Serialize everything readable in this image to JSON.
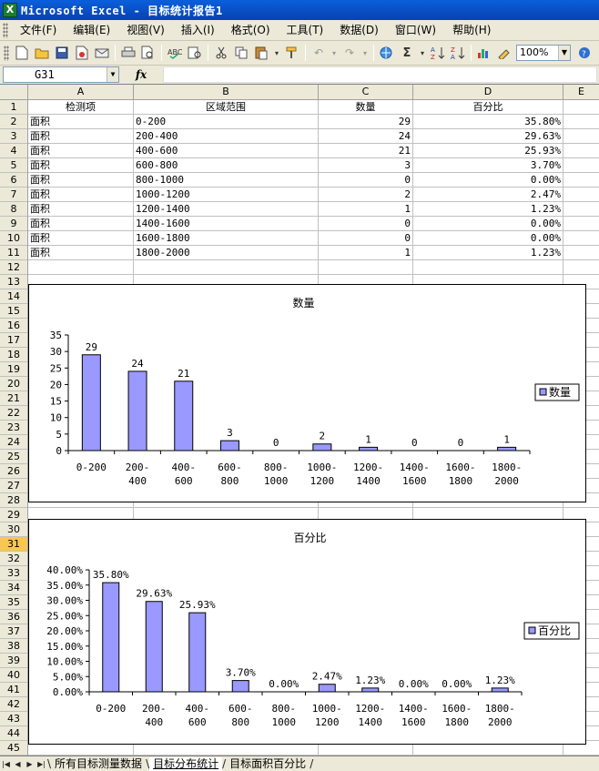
{
  "window": {
    "title": "Microsoft Excel - 目标统计报告1",
    "app_icon": "X"
  },
  "menu": [
    "文件(F)",
    "编辑(E)",
    "视图(V)",
    "插入(I)",
    "格式(O)",
    "工具(T)",
    "数据(D)",
    "窗口(W)",
    "帮助(H)"
  ],
  "toolbar": {
    "zoom": "100%"
  },
  "formula_bar": {
    "name_box": "G31",
    "fx": "fx",
    "formula": ""
  },
  "columns": [
    "A",
    "B",
    "C",
    "D",
    "E"
  ],
  "rows": [
    "1",
    "2",
    "3",
    "4",
    "5",
    "6",
    "7",
    "8",
    "9",
    "10",
    "11",
    "12",
    "13",
    "14",
    "15",
    "16",
    "17",
    "18",
    "19",
    "20",
    "21",
    "22",
    "23",
    "24",
    "25",
    "26",
    "27",
    "28",
    "29",
    "30",
    "31",
    "32",
    "33",
    "34",
    "35",
    "36",
    "37",
    "38",
    "39",
    "40",
    "41",
    "42",
    "43",
    "44",
    "45"
  ],
  "selected_row": "31",
  "table": {
    "headers": [
      "检测项",
      "区域范围",
      "数量",
      "百分比"
    ],
    "rows": [
      [
        "面积",
        "0-200",
        "29",
        "35.80%"
      ],
      [
        "面积",
        "200-400",
        "24",
        "29.63%"
      ],
      [
        "面积",
        "400-600",
        "21",
        "25.93%"
      ],
      [
        "面积",
        "600-800",
        "3",
        "3.70%"
      ],
      [
        "面积",
        "800-1000",
        "0",
        "0.00%"
      ],
      [
        "面积",
        "1000-1200",
        "2",
        "2.47%"
      ],
      [
        "面积",
        "1200-1400",
        "1",
        "1.23%"
      ],
      [
        "面积",
        "1400-1600",
        "0",
        "0.00%"
      ],
      [
        "面积",
        "1600-1800",
        "0",
        "0.00%"
      ],
      [
        "面积",
        "1800-2000",
        "1",
        "1.23%"
      ]
    ]
  },
  "chart_data": [
    {
      "type": "bar",
      "title": "数量",
      "categories": [
        "0-200",
        "200-400",
        "400-600",
        "600-800",
        "800-1000",
        "1000-1200",
        "1200-1400",
        "1400-1600",
        "1600-1800",
        "1800-2000"
      ],
      "category_lines": [
        [
          "0-200"
        ],
        [
          "200-",
          "400"
        ],
        [
          "400-",
          "600"
        ],
        [
          "600-",
          "800"
        ],
        [
          "800-",
          "1000"
        ],
        [
          "1000-",
          "1200"
        ],
        [
          "1200-",
          "1400"
        ],
        [
          "1400-",
          "1600"
        ],
        [
          "1600-",
          "1800"
        ],
        [
          "1800-",
          "2000"
        ]
      ],
      "series": [
        {
          "name": "数量",
          "values": [
            29,
            24,
            21,
            3,
            0,
            2,
            1,
            0,
            0,
            1
          ],
          "color": "#9999ff"
        }
      ],
      "data_labels": [
        "29",
        "24",
        "21",
        "3",
        "0",
        "2",
        "1",
        "0",
        "0",
        "1"
      ],
      "yticks": [
        "0",
        "5",
        "10",
        "15",
        "20",
        "25",
        "30",
        "35"
      ],
      "ylim": [
        0,
        35
      ],
      "legend": "right",
      "grid": false
    },
    {
      "type": "bar",
      "title": "百分比",
      "categories": [
        "0-200",
        "200-400",
        "400-600",
        "600-800",
        "800-1000",
        "1000-1200",
        "1200-1400",
        "1400-1600",
        "1600-1800",
        "1800-2000"
      ],
      "category_lines": [
        [
          "0-200"
        ],
        [
          "200-",
          "400"
        ],
        [
          "400-",
          "600"
        ],
        [
          "600-",
          "800"
        ],
        [
          "800-",
          "1000"
        ],
        [
          "1000-",
          "1200"
        ],
        [
          "1200-",
          "1400"
        ],
        [
          "1400-",
          "1600"
        ],
        [
          "1600-",
          "1800"
        ],
        [
          "1800-",
          "2000"
        ]
      ],
      "series": [
        {
          "name": "百分比",
          "values": [
            35.8,
            29.63,
            25.93,
            3.7,
            0,
            2.47,
            1.23,
            0,
            0,
            1.23
          ],
          "color": "#9999ff"
        }
      ],
      "data_labels": [
        "35.80%",
        "29.63%",
        "25.93%",
        "3.70%",
        "0.00%",
        "2.47%",
        "1.23%",
        "0.00%",
        "0.00%",
        "1.23%"
      ],
      "yticks": [
        "0.00%",
        "5.00%",
        "10.00%",
        "15.00%",
        "20.00%",
        "25.00%",
        "30.00%",
        "35.00%",
        "40.00%"
      ],
      "ylim": [
        0,
        40
      ],
      "legend": "right",
      "grid": false
    }
  ],
  "sheets": [
    {
      "name": "所有目标测量数据",
      "active": false
    },
    {
      "name": "目标分布统计",
      "active": true
    },
    {
      "name": "目标面积百分比",
      "active": false
    }
  ]
}
